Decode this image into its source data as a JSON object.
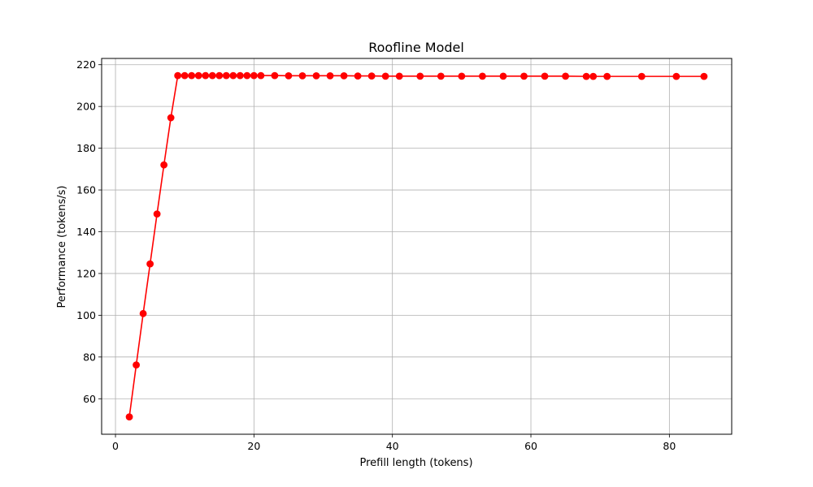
{
  "chart_data": {
    "type": "line",
    "title": "Roofline Model",
    "xlabel": "Prefill length (tokens)",
    "ylabel": "Performance (tokens/s)",
    "xlim": [
      -2,
      89
    ],
    "ylim": [
      43,
      223
    ],
    "xticks": [
      0,
      20,
      40,
      60,
      80
    ],
    "yticks": [
      60,
      80,
      100,
      120,
      140,
      160,
      180,
      200,
      220
    ],
    "grid": true,
    "series": [
      {
        "color": "#ff0000",
        "marker": "circle",
        "x": [
          2,
          3,
          4,
          5,
          6,
          7,
          8,
          9,
          10,
          11,
          12,
          13,
          14,
          15,
          16,
          17,
          18,
          19,
          20,
          21,
          23,
          25,
          27,
          29,
          31,
          33,
          35,
          37,
          39,
          41,
          44,
          47,
          50,
          53,
          56,
          59,
          62,
          65,
          68,
          69,
          71,
          76,
          81,
          85
        ],
        "y": [
          51.3,
          76.2,
          100.8,
          124.6,
          148.5,
          172.0,
          194.6,
          214.8,
          214.8,
          214.8,
          214.8,
          214.8,
          214.8,
          214.8,
          214.8,
          214.8,
          214.8,
          214.8,
          214.8,
          214.8,
          214.8,
          214.7,
          214.7,
          214.7,
          214.7,
          214.7,
          214.6,
          214.6,
          214.5,
          214.5,
          214.5,
          214.5,
          214.5,
          214.5,
          214.5,
          214.5,
          214.5,
          214.5,
          214.4,
          214.4,
          214.4,
          214.4,
          214.4,
          214.4
        ]
      }
    ]
  }
}
